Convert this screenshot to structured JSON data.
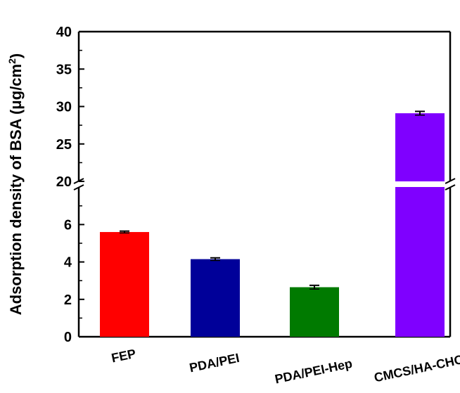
{
  "chart_data": {
    "type": "bar",
    "ylabel_main": "Adsorption  density of BSA (μg/cm",
    "ylabel_sup": "2",
    "ylabel_tail": ")",
    "categories": [
      "FEP",
      "PDA/PEI",
      "PDA/PEI-Hep",
      "CMCS/HA-CHO"
    ],
    "values": [
      5.6,
      4.15,
      2.65,
      29.1
    ],
    "errors": [
      0.05,
      0.07,
      0.1,
      0.25
    ],
    "colors": [
      "#ff0000",
      "#000099",
      "#007a00",
      "#7f00ff"
    ],
    "broken_y_axis": true,
    "ylim_lower": [
      0,
      8
    ],
    "ylim_upper": [
      20,
      40
    ],
    "yticks_lower": [
      "0",
      "2",
      "4",
      "6"
    ],
    "yticks_upper": [
      "20",
      "25",
      "30",
      "35",
      "40"
    ],
    "grid": false
  }
}
